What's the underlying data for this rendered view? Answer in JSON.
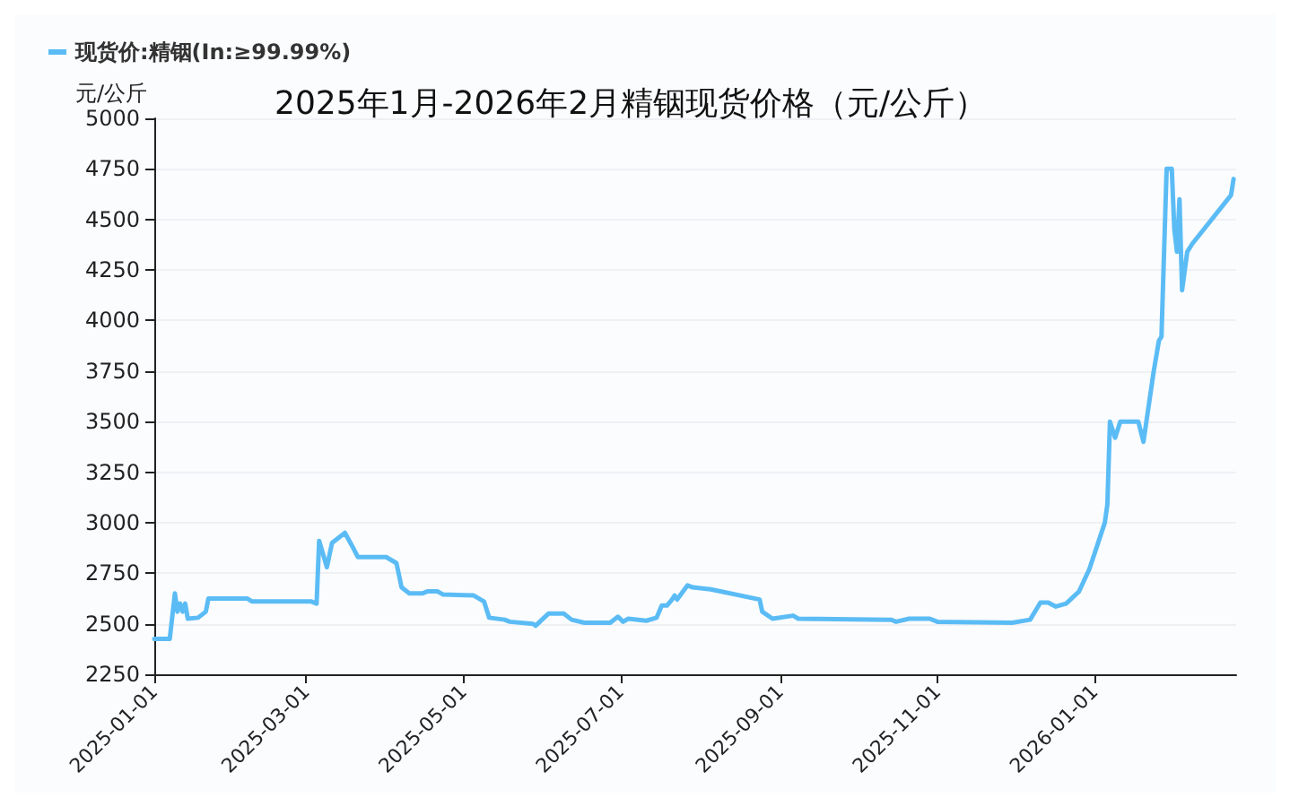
{
  "chart_data": {
    "type": "line",
    "title": "2025年1月-2026年2月精铟现货价格（元/公斤）",
    "ylabel": "元/公斤",
    "legend": "top left",
    "grid": "y",
    "marker": "none",
    "line_style": "solid",
    "xlim": [
      "2025-01-01",
      "2026-02-25"
    ],
    "xticks": [
      "2025-01-01",
      "2025-03-01",
      "2025-05-01",
      "2025-07-01",
      "2025-09-01",
      "2025-11-01",
      "2026-01-01"
    ],
    "ylim": [
      2250,
      5000
    ],
    "yticks": [
      2250,
      2500,
      2750,
      3000,
      3250,
      3500,
      3750,
      4000,
      4250,
      4500,
      4750,
      5000
    ],
    "x": [
      "2025-01-01",
      "2025-01-07",
      "2025-01-09",
      "2025-01-10",
      "2025-01-11",
      "2025-01-12",
      "2025-01-13",
      "2025-01-14",
      "2025-01-18",
      "2025-01-21",
      "2025-01-22",
      "2025-02-06",
      "2025-02-08",
      "2025-03-03",
      "2025-03-05",
      "2025-03-06",
      "2025-03-09",
      "2025-03-11",
      "2025-03-16",
      "2025-03-19",
      "2025-03-21",
      "2025-04-01",
      "2025-04-05",
      "2025-04-07",
      "2025-04-10",
      "2025-04-15",
      "2025-04-17",
      "2025-04-21",
      "2025-04-23",
      "2025-05-05",
      "2025-05-09",
      "2025-05-11",
      "2025-05-17",
      "2025-05-19",
      "2025-05-28",
      "2025-05-29",
      "2025-06-03",
      "2025-06-09",
      "2025-06-12",
      "2025-06-17",
      "2025-06-27",
      "2025-06-30",
      "2025-07-02",
      "2025-07-04",
      "2025-07-11",
      "2025-07-15",
      "2025-07-17",
      "2025-07-19",
      "2025-07-21",
      "2025-07-22",
      "2025-07-23",
      "2025-07-27",
      "2025-07-29",
      "2025-08-05",
      "2025-08-24",
      "2025-08-25",
      "2025-08-29",
      "2025-09-06",
      "2025-09-08",
      "2025-10-14",
      "2025-10-16",
      "2025-10-21",
      "2025-10-29",
      "2025-11-01",
      "2025-11-30",
      "2025-12-07",
      "2025-12-11",
      "2025-12-14",
      "2025-12-17",
      "2025-12-21",
      "2025-12-26",
      "2025-12-30",
      "2026-01-05",
      "2026-01-06",
      "2026-01-07",
      "2026-01-09",
      "2026-01-11",
      "2026-01-18",
      "2026-01-20",
      "2026-01-24",
      "2026-01-26",
      "2026-01-27",
      "2026-01-29",
      "2026-01-31",
      "2026-02-01",
      "2026-02-02",
      "2026-02-03",
      "2026-02-04",
      "2026-02-06",
      "2026-02-08",
      "2026-02-23",
      "2026-02-24"
    ],
    "series": [
      {
        "name": "现货价:精铟(In:≥99.99%)",
        "color": "#5bbcf5",
        "values": [
          2425,
          2425,
          2650,
          2560,
          2600,
          2560,
          2600,
          2525,
          2530,
          2560,
          2625,
          2625,
          2610,
          2610,
          2600,
          2910,
          2780,
          2900,
          2950,
          2880,
          2830,
          2830,
          2800,
          2680,
          2650,
          2650,
          2660,
          2660,
          2645,
          2640,
          2610,
          2530,
          2520,
          2510,
          2500,
          2490,
          2550,
          2550,
          2520,
          2505,
          2505,
          2535,
          2510,
          2525,
          2515,
          2530,
          2590,
          2590,
          2620,
          2640,
          2620,
          2690,
          2680,
          2670,
          2620,
          2560,
          2525,
          2540,
          2525,
          2520,
          2510,
          2525,
          2525,
          2510,
          2505,
          2520,
          2605,
          2605,
          2585,
          2600,
          2660,
          2770,
          3000,
          3090,
          3500,
          3420,
          3500,
          3500,
          3400,
          3750,
          3900,
          3920,
          4750,
          4750,
          4450,
          4340,
          4600,
          4150,
          4340,
          4380,
          4620,
          4700
        ]
      }
    ]
  }
}
